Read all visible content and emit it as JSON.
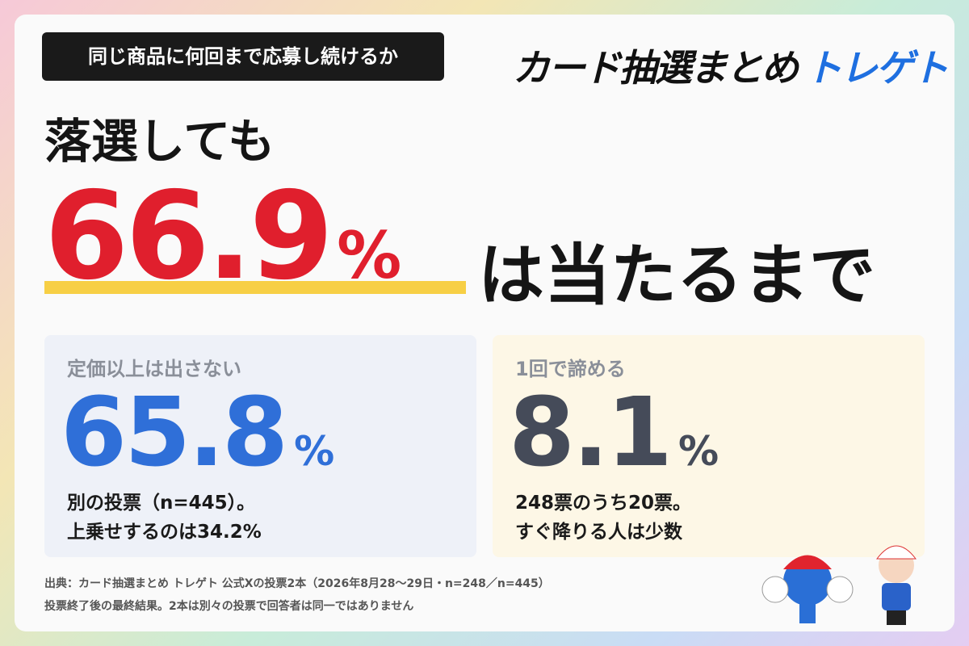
{
  "header": {
    "tag": "同じ商品に何回まで応募し続けるか",
    "logo_main": "カード抽選まとめ",
    "logo_brand": "トレゲト"
  },
  "headline": {
    "lead": "落選しても",
    "value": 66.9,
    "unit": "%",
    "tail": "は当たるまで"
  },
  "cards": [
    {
      "label": "定価以上は出さない",
      "value": 65.8,
      "unit": "%",
      "notes": [
        "別の投票（n=445）。",
        "上乗せするのは34.2%"
      ]
    },
    {
      "label": "1回で諦める",
      "value": 8.1,
      "unit": "%",
      "notes": [
        "248票のうち20票。",
        "すぐ降りる人は少数"
      ]
    }
  ],
  "footer": [
    "出典：カード抽選まとめ トレゲト 公式Xの投票2本（2026年8月28〜29日・n=248／n=445）",
    "投票終了後の最終結果。2本は別々の投票で回答者は同一ではありません"
  ]
}
